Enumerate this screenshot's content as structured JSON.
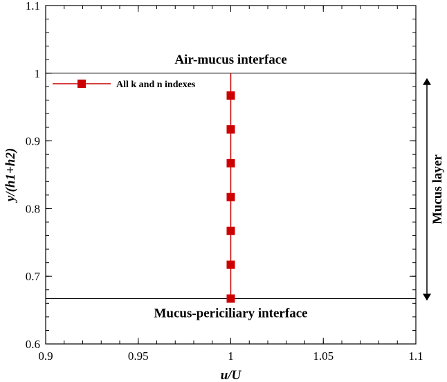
{
  "chart_data": {
    "type": "line",
    "xlabel": "u/U",
    "ylabel": "y/(h1+h2)",
    "xlim": [
      0.9,
      1.1
    ],
    "ylim": [
      0.6,
      1.1
    ],
    "x_ticks": [
      0.9,
      0.95,
      1,
      1.05,
      1.1
    ],
    "x_tick_labels": [
      "0.9",
      "0.95",
      "1",
      "1.05",
      "1.1"
    ],
    "y_ticks": [
      0.6,
      0.7,
      0.8,
      0.9,
      1,
      1.1
    ],
    "y_tick_labels": [
      "0.6",
      "0.7",
      "0.8",
      "0.9",
      "1",
      "1.1"
    ],
    "grid": false,
    "legend_position": "top-left",
    "series": [
      {
        "name": "All k and n indexes",
        "color": "#cc0000",
        "marker": "square",
        "line_y_range": [
          0.667,
          1.0
        ],
        "points": [
          {
            "x": 1,
            "y": 0.667
          },
          {
            "x": 1,
            "y": 0.717
          },
          {
            "x": 1,
            "y": 0.767
          },
          {
            "x": 1,
            "y": 0.817
          },
          {
            "x": 1,
            "y": 0.867
          },
          {
            "x": 1,
            "y": 0.917
          },
          {
            "x": 1,
            "y": 0.967
          }
        ]
      }
    ],
    "reference_lines": [
      {
        "y": 1.0,
        "label": "Air-mucus interface"
      },
      {
        "y": 0.667,
        "label": "Mucus-periciliary interface"
      }
    ],
    "side_annotation": {
      "label": "Mucus layer",
      "y_range": [
        0.667,
        1.0
      ]
    }
  }
}
